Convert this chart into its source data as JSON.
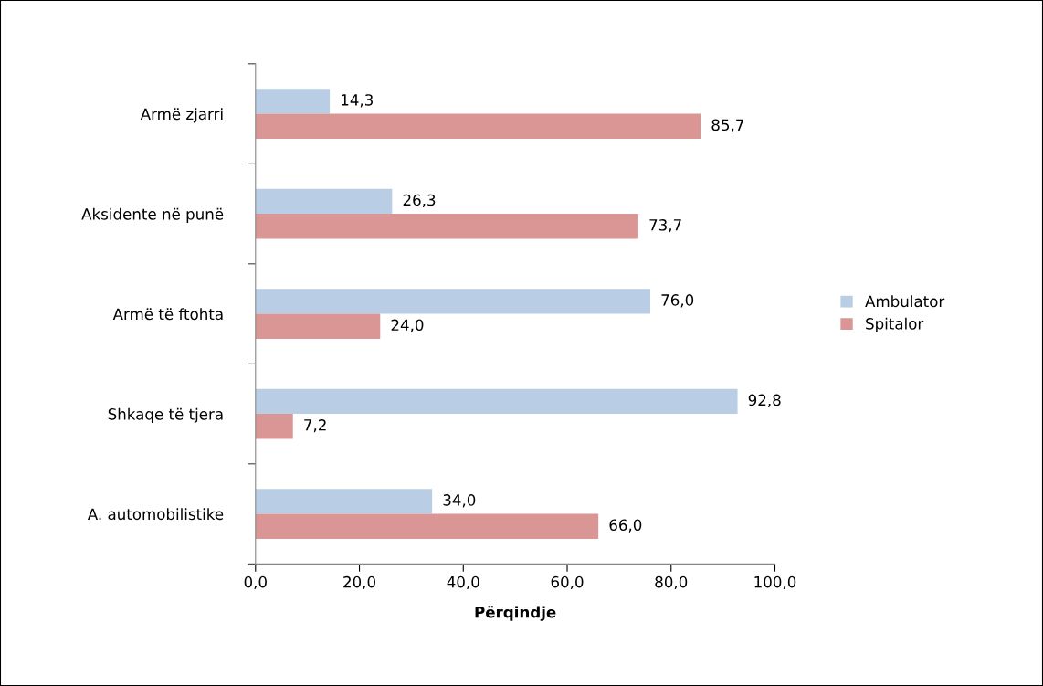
{
  "chart_data": {
    "type": "bar",
    "orientation": "horizontal",
    "xlabel": "Përqindje",
    "categories": [
      "Armë zjarri",
      "Aksidente në punë",
      "Armë të ftohta",
      "Shkaqe të tjera",
      "A. automobilistike"
    ],
    "series": [
      {
        "name": "Ambulator",
        "color": "#b9cde5",
        "values": [
          14.3,
          26.3,
          76.0,
          92.8,
          34.0
        ],
        "value_labels": [
          "14,3",
          "26,3",
          "76,0",
          "92,8",
          "34,0"
        ]
      },
      {
        "name": "Spitalor",
        "color": "#d99694",
        "values": [
          85.7,
          73.7,
          24.0,
          7.2,
          66.0
        ],
        "value_labels": [
          "85,7",
          "73,7",
          "24,0",
          "7,2",
          "66,0"
        ]
      }
    ],
    "xlim": [
      0,
      100
    ],
    "xticks": [
      {
        "value": 0,
        "label": "0,0"
      },
      {
        "value": 20,
        "label": "20,0"
      },
      {
        "value": 40,
        "label": "40,0"
      },
      {
        "value": 60,
        "label": "60,0"
      },
      {
        "value": 80,
        "label": "80,0"
      },
      {
        "value": 100,
        "label": "100,0"
      }
    ],
    "grid": false,
    "legend": "right"
  }
}
